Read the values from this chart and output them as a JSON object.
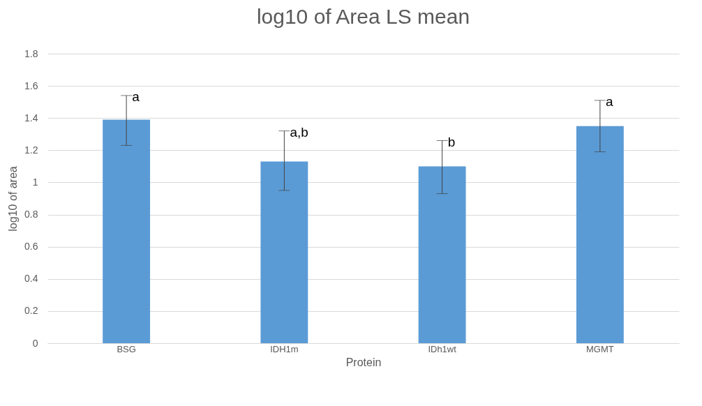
{
  "chart_data": {
    "type": "bar",
    "title": "log10 of Area LS mean",
    "xlabel": "Protein",
    "ylabel": "log10 of area",
    "categories": [
      "BSG",
      "IDH1m",
      "IDh1wt",
      "MGMT"
    ],
    "values": [
      1.39,
      1.13,
      1.1,
      1.35
    ],
    "errors": [
      [
        1.23,
        1.54
      ],
      [
        0.95,
        1.32
      ],
      [
        0.93,
        1.26
      ],
      [
        1.19,
        1.51
      ]
    ],
    "color": "#5b9bd5",
    "ylim": [
      0,
      1.8
    ],
    "yticks": [
      0,
      0.2,
      0.4,
      0.6,
      0.8,
      1,
      1.2,
      1.4,
      1.6,
      1.8
    ],
    "grid": "y",
    "annotations": [
      {
        "text": "a",
        "x": "BSG",
        "y": 1.54
      },
      {
        "text": "a,b",
        "x": "IDH1m",
        "y": 1.32
      },
      {
        "text": "b",
        "x": "IDh1wt",
        "y": 1.26
      },
      {
        "text": "a",
        "x": "MGMT",
        "y": 1.51
      }
    ]
  }
}
